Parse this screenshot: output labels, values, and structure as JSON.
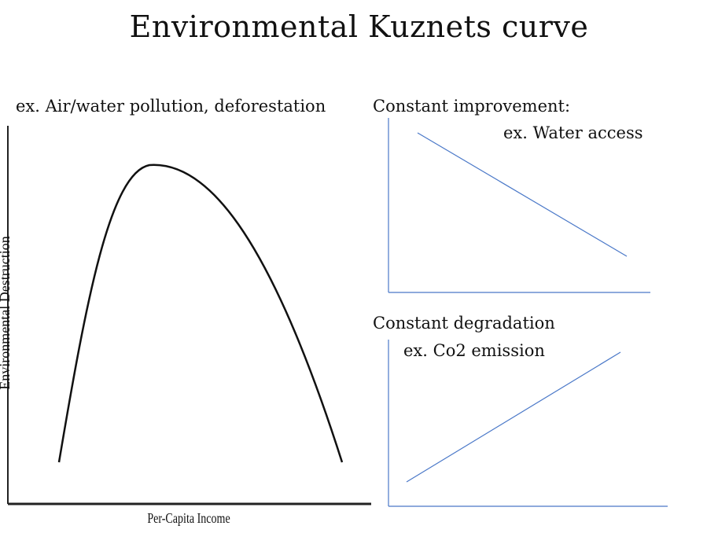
{
  "title": "Environmental Kuznets curve",
  "main_chart": {
    "example_label": "ex. Air/water pollution, deforestation",
    "xlabel": "Per-Capita Income",
    "ylabel": "Environmental Destruction"
  },
  "improvement_chart": {
    "heading": "Constant improvement:",
    "example_label": "ex. Water access"
  },
  "degradation_chart": {
    "heading": "Constant degradation",
    "example_label": "ex. Co2 emission"
  },
  "colors": {
    "curve": "#111111",
    "axis_main": "#222222",
    "accent_line": "#4a78c8"
  }
}
